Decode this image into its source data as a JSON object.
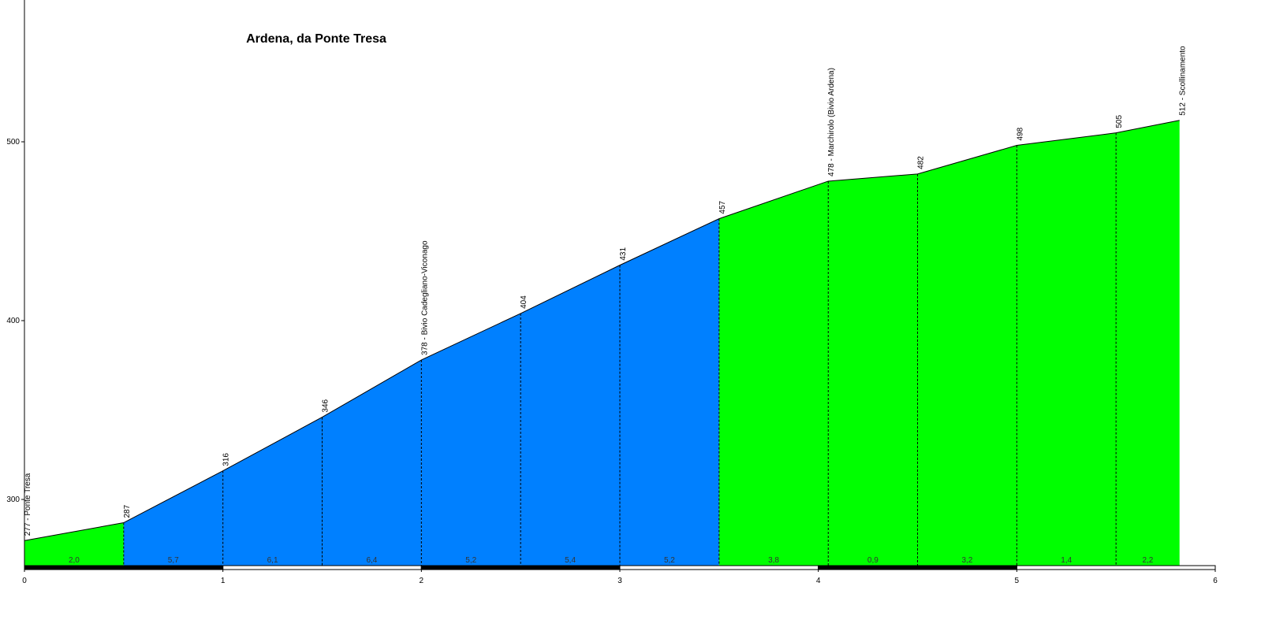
{
  "chart_data": {
    "type": "area",
    "title": "Ardena, da Ponte Tresa",
    "xlabel": "",
    "ylabel": "",
    "xlim": [
      0,
      6
    ],
    "ylim": [
      262,
      580
    ],
    "x_ticks": [
      "0",
      "1",
      "2",
      "3",
      "4",
      "5",
      "6"
    ],
    "y_ticks": [
      "300",
      "400",
      "500"
    ],
    "grid": false,
    "legend": "none",
    "colors": {
      "easy": "#00ff00",
      "steep": "#0080ff",
      "outline": "#000000"
    },
    "points": [
      {
        "km": 0.0,
        "alt": 277,
        "label": "277 - Ponte Tresa"
      },
      {
        "km": 0.5,
        "alt": 287,
        "label": "287"
      },
      {
        "km": 1.0,
        "alt": 316,
        "label": "316"
      },
      {
        "km": 1.5,
        "alt": 346,
        "label": "346"
      },
      {
        "km": 2.0,
        "alt": 378,
        "label": "378 - Bivio Cadegliano-Viconago"
      },
      {
        "km": 2.5,
        "alt": 404,
        "label": "404"
      },
      {
        "km": 3.0,
        "alt": 431,
        "label": "431"
      },
      {
        "km": 3.5,
        "alt": 457,
        "label": "457"
      },
      {
        "km": 4.05,
        "alt": 478,
        "label": "478 - Marchirolo (Bivio Ardena)"
      },
      {
        "km": 4.5,
        "alt": 482,
        "label": "482"
      },
      {
        "km": 5.0,
        "alt": 498,
        "label": "498"
      },
      {
        "km": 5.5,
        "alt": 505,
        "label": "505"
      },
      {
        "km": 5.82,
        "alt": 512,
        "label": "512 - Scollinamento"
      }
    ],
    "segments": [
      {
        "gradient": "2,0",
        "color": "easy"
      },
      {
        "gradient": "5,7",
        "color": "steep"
      },
      {
        "gradient": "6,1",
        "color": "steep"
      },
      {
        "gradient": "6,4",
        "color": "steep"
      },
      {
        "gradient": "5,2",
        "color": "steep"
      },
      {
        "gradient": "5,4",
        "color": "steep"
      },
      {
        "gradient": "5,2",
        "color": "steep"
      },
      {
        "gradient": "3,8",
        "color": "easy"
      },
      {
        "gradient": "0,9",
        "color": "easy"
      },
      {
        "gradient": "3,2",
        "color": "easy"
      },
      {
        "gradient": "1,4",
        "color": "easy"
      },
      {
        "gradient": "2,2",
        "color": "easy"
      }
    ]
  }
}
